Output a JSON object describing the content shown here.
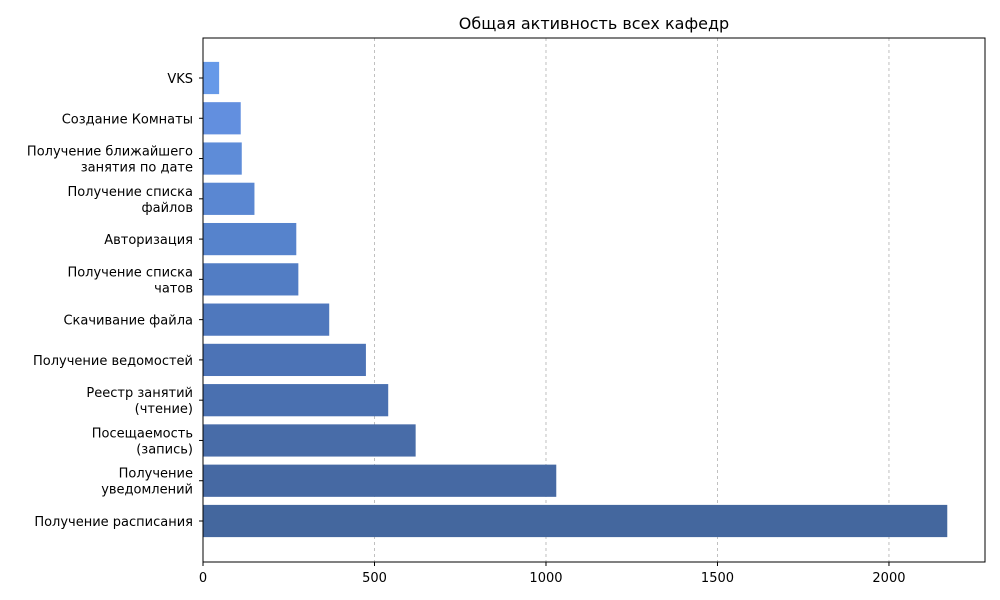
{
  "chart_data": {
    "type": "bar",
    "orientation": "horizontal",
    "title": "Общая активность всех кафедр",
    "xlabel": "",
    "ylabel": "",
    "xlim": [
      0,
      2280
    ],
    "xticks": [
      0,
      500,
      1000,
      1500,
      2000
    ],
    "grid": "vertical dashed",
    "categories": [
      "Получение расписания",
      "Получение\nуведомлений",
      "Посещаемость\n(запись)",
      "Реестр занятий\n(чтение)",
      "Получение ведомостей",
      "Скачивание файла",
      "Получение списка\nчатов",
      "Авторизация",
      "Получение списка\nфайлов",
      "Получение ближайшего\nзанятия по дате",
      "Создание Комнаты",
      "VKS"
    ],
    "values": [
      2170,
      1030,
      620,
      540,
      475,
      368,
      278,
      272,
      150,
      113,
      110,
      47
    ],
    "colors": [
      "#44679e",
      "#4669a3",
      "#486ca8",
      "#4a70b0",
      "#4c73b6",
      "#4f78bd",
      "#527dc4",
      "#5683cc",
      "#5a87d2",
      "#5e8cd8",
      "#628fdf",
      "#6699e8"
    ]
  }
}
